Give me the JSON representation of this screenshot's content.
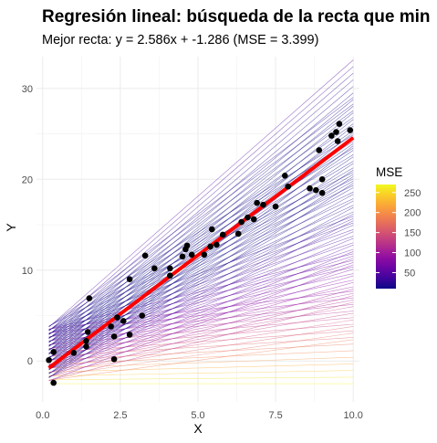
{
  "chart_data": {
    "type": "scatter",
    "title": "Regresión lineal: búsqueda de la recta que min",
    "subtitle": "Mejor recta: y = 2.586x + -1.286  (MSE = 3.399)",
    "xlabel": "X",
    "ylabel": "Y",
    "xlim": [
      -0.2,
      10.2
    ],
    "ylim": [
      -4.5,
      33.5
    ],
    "x_ticks": [
      0.0,
      2.5,
      5.0,
      7.5,
      10.0
    ],
    "x_tick_labels": [
      "0.0",
      "2.5",
      "5.0",
      "7.5",
      "10.0"
    ],
    "y_ticks": [
      0,
      10,
      20,
      30
    ],
    "y_tick_labels": [
      "0",
      "10",
      "20",
      "30"
    ],
    "grid": true,
    "best_fit": {
      "slope": 2.586,
      "intercept": -1.286,
      "mse": 3.399,
      "x_range": [
        0.2,
        10.0
      ],
      "color": "#ff0000"
    },
    "candidate_lines": {
      "slope_range": [
        0.0,
        3.0
      ],
      "intercept_range": [
        -2.5,
        3.5
      ],
      "count": 100,
      "x_range": [
        0.2,
        10.0
      ],
      "colormap": "plasma",
      "color_range": [
        10,
        270
      ]
    },
    "points": [
      {
        "x": 0.2,
        "y": 0.1
      },
      {
        "x": 0.35,
        "y": 1.0
      },
      {
        "x": 0.35,
        "y": -2.4
      },
      {
        "x": 1.0,
        "y": 0.9
      },
      {
        "x": 1.4,
        "y": 1.6
      },
      {
        "x": 1.4,
        "y": 2.2
      },
      {
        "x": 1.45,
        "y": 3.2
      },
      {
        "x": 1.5,
        "y": 6.9
      },
      {
        "x": 2.2,
        "y": 3.8
      },
      {
        "x": 2.3,
        "y": 2.7
      },
      {
        "x": 2.3,
        "y": 0.2
      },
      {
        "x": 2.4,
        "y": 4.8
      },
      {
        "x": 2.6,
        "y": 4.4
      },
      {
        "x": 2.8,
        "y": 9.0
      },
      {
        "x": 2.8,
        "y": 2.9
      },
      {
        "x": 3.2,
        "y": 5.0
      },
      {
        "x": 3.3,
        "y": 11.6
      },
      {
        "x": 3.6,
        "y": 10.2
      },
      {
        "x": 4.1,
        "y": 10.2
      },
      {
        "x": 4.1,
        "y": 9.4
      },
      {
        "x": 4.5,
        "y": 11.5
      },
      {
        "x": 4.6,
        "y": 12.3
      },
      {
        "x": 4.65,
        "y": 12.7
      },
      {
        "x": 4.8,
        "y": 11.7
      },
      {
        "x": 5.2,
        "y": 11.7
      },
      {
        "x": 5.4,
        "y": 12.6
      },
      {
        "x": 5.45,
        "y": 14.5
      },
      {
        "x": 5.6,
        "y": 12.8
      },
      {
        "x": 5.8,
        "y": 13.9
      },
      {
        "x": 6.3,
        "y": 14.0
      },
      {
        "x": 6.4,
        "y": 15.3
      },
      {
        "x": 6.6,
        "y": 15.8
      },
      {
        "x": 6.8,
        "y": 15.6
      },
      {
        "x": 6.9,
        "y": 17.4
      },
      {
        "x": 7.1,
        "y": 17.2
      },
      {
        "x": 7.5,
        "y": 17.0
      },
      {
        "x": 7.8,
        "y": 20.4
      },
      {
        "x": 7.9,
        "y": 19.2
      },
      {
        "x": 8.6,
        "y": 19.0
      },
      {
        "x": 8.8,
        "y": 18.8
      },
      {
        "x": 8.9,
        "y": 23.2
      },
      {
        "x": 9.0,
        "y": 20.0
      },
      {
        "x": 9.0,
        "y": 18.5
      },
      {
        "x": 9.3,
        "y": 24.8
      },
      {
        "x": 9.45,
        "y": 25.2
      },
      {
        "x": 9.5,
        "y": 24.2
      },
      {
        "x": 9.55,
        "y": 26.1
      },
      {
        "x": 9.9,
        "y": 25.4
      }
    ],
    "point_color": "#000000",
    "legend": {
      "title": "MSE",
      "position": "right",
      "ticks": [
        50,
        100,
        150,
        200,
        250
      ],
      "tick_labels": [
        "50",
        "100",
        "150",
        "200",
        "250"
      ],
      "range": [
        10,
        270
      ]
    }
  }
}
